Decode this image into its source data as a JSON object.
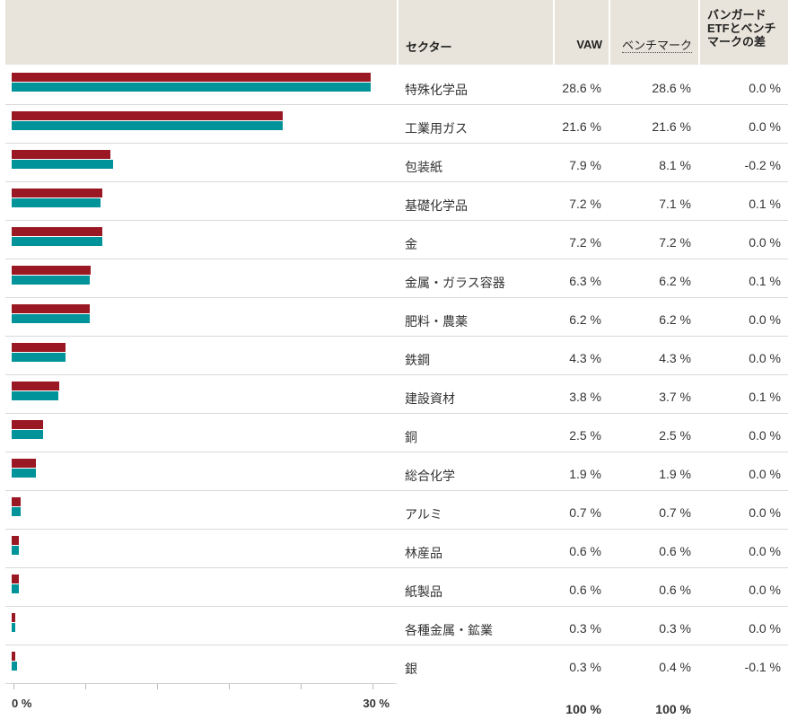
{
  "headers": {
    "sector": "セクター",
    "vaw": "VAW",
    "benchmark": "ベンチマーク",
    "diff": [
      "バンガード",
      "ETFとベンチ",
      "マークの差"
    ]
  },
  "colors": {
    "vaw": "#9a1823",
    "benchmark": "#00949a",
    "header_bg": "#e8e4db"
  },
  "chart_data": {
    "type": "bar",
    "orientation": "horizontal",
    "categories": [
      "特殊化学品",
      "工業用ガス",
      "包装紙",
      "基礎化学品",
      "金",
      "金属・ガラス容器",
      "肥料・農薬",
      "鉄鋼",
      "建設資材",
      "銅",
      "総合化学",
      "アルミ",
      "林産品",
      "紙製品",
      "各種金属・鉱業",
      "銀"
    ],
    "series": [
      {
        "name": "VAW",
        "values": [
          28.6,
          21.6,
          7.9,
          7.2,
          7.2,
          6.3,
          6.2,
          4.3,
          3.8,
          2.5,
          1.9,
          0.7,
          0.6,
          0.6,
          0.3,
          0.3
        ]
      },
      {
        "name": "ベンチマーク",
        "values": [
          28.6,
          21.6,
          8.1,
          7.1,
          7.2,
          6.2,
          6.2,
          4.3,
          3.7,
          2.5,
          1.9,
          0.7,
          0.6,
          0.6,
          0.3,
          0.4
        ]
      }
    ],
    "xlim": [
      0,
      30
    ],
    "axis_labels": [
      "0 %",
      "30 %"
    ]
  },
  "rows": [
    {
      "sector": "特殊化学品",
      "vaw": "28.6 %",
      "bench": "28.6 %",
      "diff": "0.0 %"
    },
    {
      "sector": "工業用ガス",
      "vaw": "21.6 %",
      "bench": "21.6 %",
      "diff": "0.0 %"
    },
    {
      "sector": "包装紙",
      "vaw": "7.9 %",
      "bench": "8.1 %",
      "diff": "-0.2 %"
    },
    {
      "sector": "基礎化学品",
      "vaw": "7.2 %",
      "bench": "7.1 %",
      "diff": "0.1 %"
    },
    {
      "sector": "金",
      "vaw": "7.2 %",
      "bench": "7.2 %",
      "diff": "0.0 %"
    },
    {
      "sector": "金属・ガラス容器",
      "vaw": "6.3 %",
      "bench": "6.2 %",
      "diff": "0.1 %"
    },
    {
      "sector": "肥料・農薬",
      "vaw": "6.2 %",
      "bench": "6.2 %",
      "diff": "0.0 %"
    },
    {
      "sector": "鉄鋼",
      "vaw": "4.3 %",
      "bench": "4.3 %",
      "diff": "0.0 %"
    },
    {
      "sector": "建設資材",
      "vaw": "3.8 %",
      "bench": "3.7 %",
      "diff": "0.1 %"
    },
    {
      "sector": "銅",
      "vaw": "2.5 %",
      "bench": "2.5 %",
      "diff": "0.0 %"
    },
    {
      "sector": "総合化学",
      "vaw": "1.9 %",
      "bench": "1.9 %",
      "diff": "0.0 %"
    },
    {
      "sector": "アルミ",
      "vaw": "0.7 %",
      "bench": "0.7 %",
      "diff": "0.0 %"
    },
    {
      "sector": "林産品",
      "vaw": "0.6 %",
      "bench": "0.6 %",
      "diff": "0.0 %"
    },
    {
      "sector": "紙製品",
      "vaw": "0.6 %",
      "bench": "0.6 %",
      "diff": "0.0 %"
    },
    {
      "sector": "各種金属・鉱業",
      "vaw": "0.3 %",
      "bench": "0.3 %",
      "diff": "0.0 %"
    },
    {
      "sector": "銀",
      "vaw": "0.3 %",
      "bench": "0.4 %",
      "diff": "-0.1 %"
    }
  ],
  "totals": {
    "vaw": "100 %",
    "bench": "100 %"
  }
}
